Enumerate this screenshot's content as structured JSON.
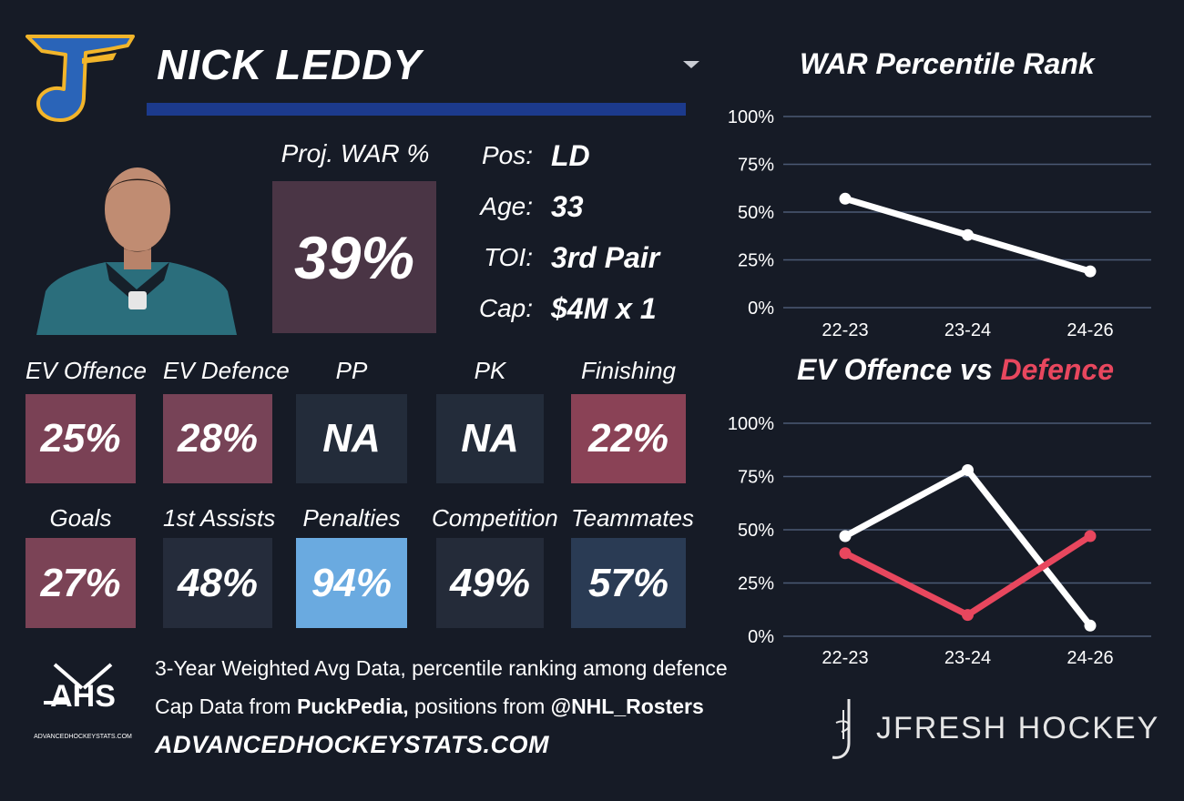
{
  "player": {
    "name": "NICK LEDDY"
  },
  "projected_war": {
    "label": "Proj. WAR %",
    "value": "39%"
  },
  "info": [
    {
      "label": "Pos:",
      "value": "LD"
    },
    {
      "label": "Age:",
      "value": "33"
    },
    {
      "label": "TOI:",
      "value": "3rd Pair"
    },
    {
      "label": "Cap:",
      "value": "$4M x 1"
    }
  ],
  "stats": [
    {
      "label": "EV Offence",
      "value": "25%",
      "color": "#7a4155"
    },
    {
      "label": "EV Defence",
      "value": "28%",
      "color": "#774357"
    },
    {
      "label": "PP",
      "value": "NA",
      "color": "#232c3a"
    },
    {
      "label": "PK",
      "value": "NA",
      "color": "#232c3a"
    },
    {
      "label": "Finishing",
      "value": "22%",
      "color": "#8a4256"
    },
    {
      "label": "Goals",
      "value": "27%",
      "color": "#7b4356"
    },
    {
      "label": "1st Assists",
      "value": "48%",
      "color": "#252c3b"
    },
    {
      "label": "Penalties",
      "value": "94%",
      "color": "#6aaae0"
    },
    {
      "label": "Competition",
      "value": "49%",
      "color": "#242b39"
    },
    {
      "label": "Teammates",
      "value": "57%",
      "color": "#2a3b54"
    }
  ],
  "footer": {
    "note1": "3-Year Weighted Avg Data, percentile ranking among defence",
    "note2_prefix": "Cap Data from ",
    "note2_source": "PuckPedia,",
    "note2_middle": " positions from ",
    "note2_handle": "@NHL_Rosters",
    "site": "ADVANCEDHOCKEYSTATS.COM",
    "ahs_logo_text": "AHS",
    "ahs_logo_subtext": "ADVANCEDHOCKEYSTATS.COM",
    "brand": "JFRESH HOCKEY"
  },
  "colors": {
    "background": "#161b26",
    "name_bar": "#1c3a8c",
    "offence_line": "#ffffff",
    "defence_line": "#e8475e",
    "blues_logo": "#2a64b8",
    "blues_logo_outline": "#f2b52a"
  },
  "chart_data": [
    {
      "type": "line",
      "title": "WAR Percentile Rank",
      "categories": [
        "22-23",
        "23-24",
        "24-26"
      ],
      "yticks": [
        "0%",
        "25%",
        "50%",
        "75%",
        "100%"
      ],
      "ylim": [
        0,
        100
      ],
      "grid": true,
      "series": [
        {
          "values": [
            57,
            38,
            19
          ],
          "color": "#ffffff"
        }
      ]
    },
    {
      "type": "line",
      "title_prefix": "EV Offence vs ",
      "title_highlight": "Defence",
      "categories": [
        "22-23",
        "23-24",
        "24-26"
      ],
      "yticks": [
        "0%",
        "25%",
        "50%",
        "75%",
        "100%"
      ],
      "ylim": [
        0,
        100
      ],
      "grid": true,
      "series": [
        {
          "values": [
            47,
            78,
            5
          ],
          "color": "#ffffff"
        },
        {
          "values": [
            39,
            10,
            47
          ],
          "color": "#e8475e"
        }
      ]
    }
  ]
}
